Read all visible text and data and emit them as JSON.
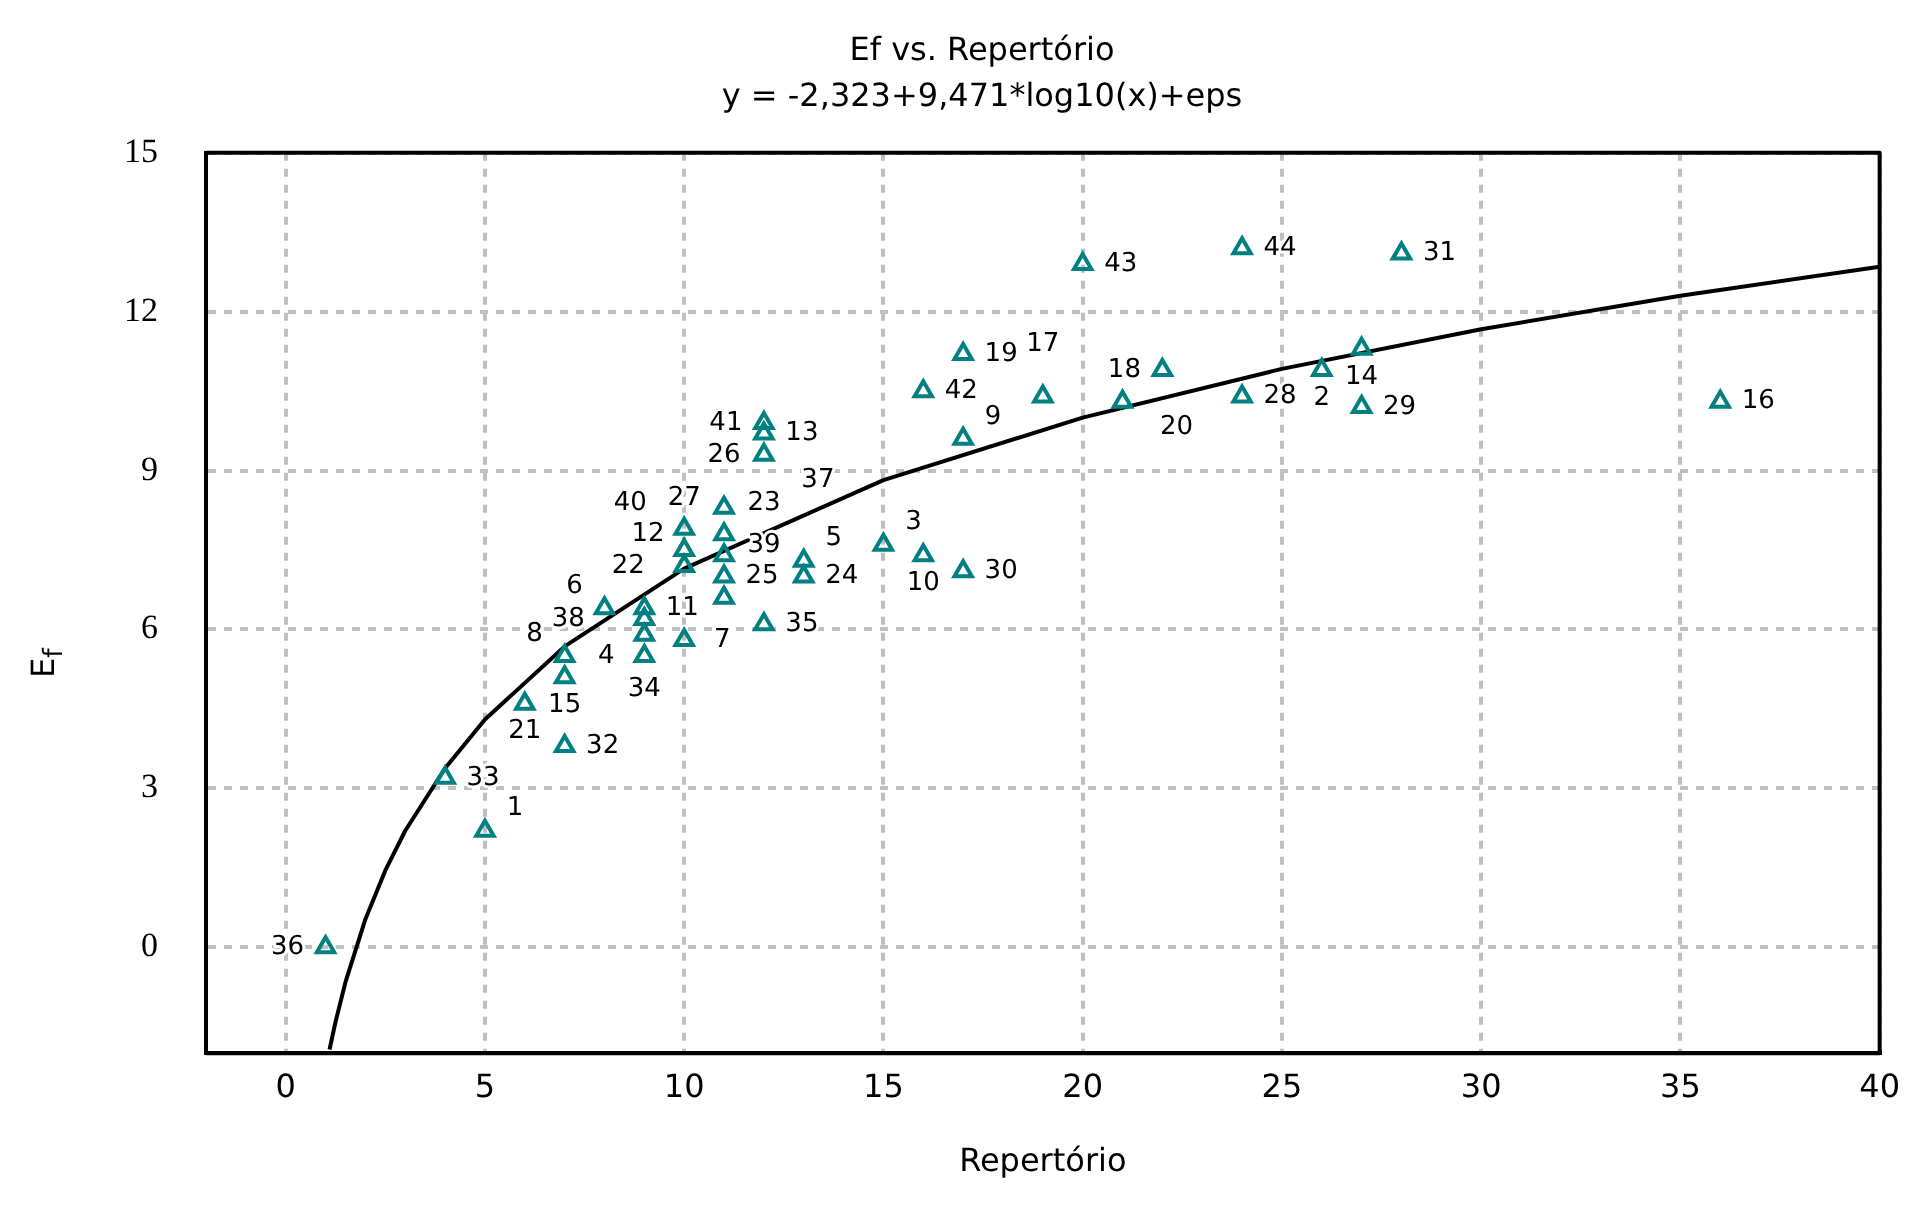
{
  "chart_data": {
    "type": "scatter",
    "title": "Ef vs. Repertório",
    "subtitle": "y = -2,323+9,471*log10(x)+eps",
    "xlabel": "Repertório",
    "ylabel": "E$_{f}$",
    "xlim": [
      -2,
      40
    ],
    "xticks": [
      0,
      5,
      10,
      15,
      20,
      25,
      30,
      35,
      40
    ],
    "ylim": [
      -2,
      15
    ],
    "yticks": [
      0,
      3,
      6,
      9,
      12,
      15
    ],
    "grid": true,
    "legend": false,
    "series": [
      {
        "type": "scatter",
        "color": "#008080",
        "marker": "triangle",
        "x": [
          5,
          26,
          15,
          9,
          13,
          8,
          10,
          7,
          17,
          16,
          9,
          11,
          12,
          27,
          7,
          36,
          19,
          22,
          17,
          21,
          6,
          10,
          11,
          13,
          11,
          11,
          10,
          24,
          27,
          17,
          28,
          7,
          4,
          9,
          12,
          1,
          12,
          9,
          11,
          10,
          12,
          16,
          20,
          24
        ],
        "values": [
          2.2,
          10.9,
          7.6,
          5.5,
          7.3,
          6.4,
          5.8,
          5.5,
          9.6,
          7.4,
          6.4,
          7.8,
          9.7,
          11.3,
          5.1,
          10.3,
          10.4,
          10.9,
          11.2,
          10.3,
          4.6,
          7.2,
          7.4,
          7.0,
          7.0,
          8.3,
          7.5,
          10.4,
          10.2,
          7.1,
          13.1,
          3.8,
          3.2,
          5.9,
          6.1,
          0,
          9.3,
          6.2,
          6.6,
          7.9,
          9.9,
          10.5,
          12.9,
          13.2
        ]
      },
      {
        "type": "line",
        "color": "#000000",
        "marker": "none",
        "line_style": "solid",
        "x": [
          1.1,
          1.25,
          1.5,
          2,
          2.5,
          3,
          4,
          5,
          7,
          10,
          15,
          20,
          25,
          30,
          35,
          40
        ],
        "values": [
          -1.93,
          -1.41,
          -0.66,
          0.53,
          1.45,
          2.2,
          3.38,
          4.3,
          5.68,
          7.15,
          8.82,
          10.0,
          10.92,
          11.67,
          12.3,
          12.85
        ]
      }
    ],
    "annotations": [
      {
        "text": "1",
        "x": 5,
        "y": 2.2
      },
      {
        "text": "2",
        "x": 26,
        "y": 10.9
      },
      {
        "text": "3",
        "x": 15,
        "y": 7.6
      },
      {
        "text": "4",
        "x": 9,
        "y": 5.5
      },
      {
        "text": "5",
        "x": 13,
        "y": 7.3
      },
      {
        "text": "6",
        "x": 8,
        "y": 6.4
      },
      {
        "text": "7",
        "x": 10,
        "y": 5.8
      },
      {
        "text": "8",
        "x": 7,
        "y": 5.5
      },
      {
        "text": "9",
        "x": 17,
        "y": 9.6
      },
      {
        "text": "10",
        "x": 16,
        "y": 7.4
      },
      {
        "text": "11",
        "x": 9,
        "y": 6.4
      },
      {
        "text": "12",
        "x": 11,
        "y": 7.8
      },
      {
        "text": "13",
        "x": 12,
        "y": 9.7
      },
      {
        "text": "14",
        "x": 27,
        "y": 11.3
      },
      {
        "text": "15",
        "x": 7,
        "y": 5.1
      },
      {
        "text": "16",
        "x": 36,
        "y": 10.3
      },
      {
        "text": "17",
        "x": 19,
        "y": 10.4
      },
      {
        "text": "18",
        "x": 22,
        "y": 10.9
      },
      {
        "text": "19",
        "x": 17,
        "y": 11.2
      },
      {
        "text": "20",
        "x": 21,
        "y": 10.3
      },
      {
        "text": "21",
        "x": 6,
        "y": 4.6
      },
      {
        "text": "22",
        "x": 10,
        "y": 7.2
      },
      {
        "text": "23",
        "x": 11,
        "y": 7.4
      },
      {
        "text": "24",
        "x": 13,
        "y": 7.0
      },
      {
        "text": "25",
        "x": 11,
        "y": 7.0
      },
      {
        "text": "26",
        "x": 11,
        "y": 8.3
      },
      {
        "text": "27",
        "x": 10,
        "y": 7.5
      },
      {
        "text": "28",
        "x": 24,
        "y": 10.4
      },
      {
        "text": "29",
        "x": 27,
        "y": 10.2
      },
      {
        "text": "30",
        "x": 17,
        "y": 7.1
      },
      {
        "text": "31",
        "x": 28,
        "y": 13.1
      },
      {
        "text": "32",
        "x": 7,
        "y": 3.8
      },
      {
        "text": "33",
        "x": 4,
        "y": 3.2
      },
      {
        "text": "34",
        "x": 9,
        "y": 5.9
      },
      {
        "text": "35",
        "x": 12,
        "y": 6.1
      },
      {
        "text": "36",
        "x": 1,
        "y": 0
      },
      {
        "text": "37",
        "x": 12,
        "y": 9.3
      },
      {
        "text": "38",
        "x": 9,
        "y": 6.2
      },
      {
        "text": "39",
        "x": 11,
        "y": 6.6
      },
      {
        "text": "40",
        "x": 10,
        "y": 7.9
      },
      {
        "text": "41",
        "x": 12,
        "y": 9.9
      },
      {
        "text": "42",
        "x": 16,
        "y": 10.5
      },
      {
        "text": "43",
        "x": 20,
        "y": 12.9
      },
      {
        "text": "44",
        "x": 24,
        "y": 13.2
      }
    ]
  }
}
